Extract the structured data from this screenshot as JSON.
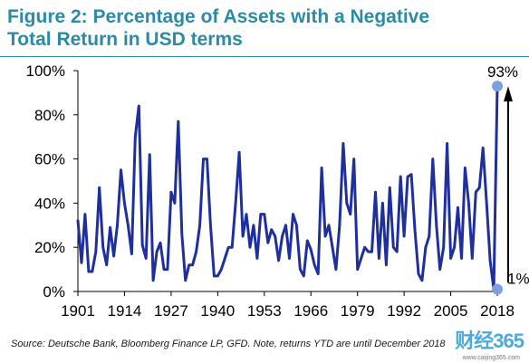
{
  "figure": {
    "title": "Figure 2: Percentage of Assets with a Negative Total Return in USD terms",
    "source": "Source: Deutsche Bank, Bloomberg Finance LP, GFD. Note, returns YTD are until December 2018",
    "watermark": "财经365",
    "watermark_url": "www.caijing365.com"
  },
  "colors": {
    "title": "#2b8aa5",
    "series": "#1f2f9e",
    "marker": "#7d9fe0",
    "arrow": "#000000",
    "axis": "#000000"
  },
  "chart_data": {
    "type": "line",
    "title": "",
    "xlabel": "",
    "ylabel": "",
    "xlim": [
      1901,
      2019
    ],
    "ylim": [
      0,
      100
    ],
    "x_ticks": [
      1901,
      1914,
      1927,
      1940,
      1953,
      1966,
      1979,
      1992,
      2005,
      2018
    ],
    "x_tick_labels": [
      "1901",
      "1914",
      "1927",
      "1940",
      "1953",
      "1966",
      "1979",
      "1992",
      "2005",
      "2018"
    ],
    "y_ticks": [
      0,
      20,
      40,
      60,
      80,
      100
    ],
    "y_tick_labels": [
      "0%",
      "20%",
      "40%",
      "60%",
      "80%",
      "100%"
    ],
    "grid": false,
    "series": [
      {
        "name": "",
        "x": [
          1901,
          1902,
          1903,
          1904,
          1905,
          1906,
          1907,
          1908,
          1909,
          1910,
          1911,
          1912,
          1913,
          1914,
          1915,
          1916,
          1917,
          1918,
          1919,
          1920,
          1921,
          1922,
          1923,
          1924,
          1925,
          1926,
          1927,
          1928,
          1929,
          1930,
          1931,
          1932,
          1933,
          1934,
          1935,
          1936,
          1937,
          1938,
          1939,
          1940,
          1941,
          1942,
          1943,
          1944,
          1945,
          1946,
          1947,
          1948,
          1949,
          1950,
          1951,
          1952,
          1953,
          1954,
          1955,
          1956,
          1957,
          1958,
          1959,
          1960,
          1961,
          1962,
          1963,
          1964,
          1965,
          1966,
          1967,
          1968,
          1969,
          1970,
          1971,
          1972,
          1973,
          1974,
          1975,
          1976,
          1977,
          1978,
          1979,
          1980,
          1981,
          1982,
          1983,
          1984,
          1985,
          1986,
          1987,
          1988,
          1989,
          1990,
          1991,
          1992,
          1993,
          1994,
          1995,
          1996,
          1997,
          1998,
          1999,
          2000,
          2001,
          2002,
          2003,
          2004,
          2005,
          2006,
          2007,
          2008,
          2009,
          2010,
          2011,
          2012,
          2013,
          2014,
          2015,
          2016,
          2017,
          2018
        ],
        "values": [
          32,
          13,
          35,
          9,
          9,
          18,
          47,
          20,
          12,
          29,
          16,
          30,
          55,
          40,
          30,
          17,
          70,
          84,
          21,
          15,
          62,
          5,
          18,
          22,
          10,
          10,
          45,
          40,
          77,
          26,
          5,
          12,
          12,
          18,
          30,
          60,
          60,
          30,
          7,
          7,
          10,
          15,
          20,
          20,
          40,
          63,
          25,
          35,
          20,
          30,
          15,
          35,
          35,
          22,
          28,
          25,
          14,
          25,
          30,
          15,
          35,
          30,
          10,
          7,
          23,
          19,
          12,
          8,
          56,
          25,
          30,
          20,
          10,
          30,
          67,
          40,
          35,
          60,
          10,
          15,
          20,
          18,
          18,
          45,
          15,
          40,
          12,
          47,
          20,
          18,
          52,
          25,
          52,
          53,
          28,
          8,
          5,
          20,
          25,
          60,
          30,
          10,
          20,
          67,
          15,
          20,
          38,
          15,
          56,
          40,
          15,
          45,
          47,
          65,
          40,
          14,
          1,
          93
        ]
      }
    ],
    "annotations": [
      {
        "label": "93%",
        "x": 2018,
        "y": 93
      },
      {
        "label": "1%",
        "x": 2018,
        "y": 1
      }
    ]
  }
}
